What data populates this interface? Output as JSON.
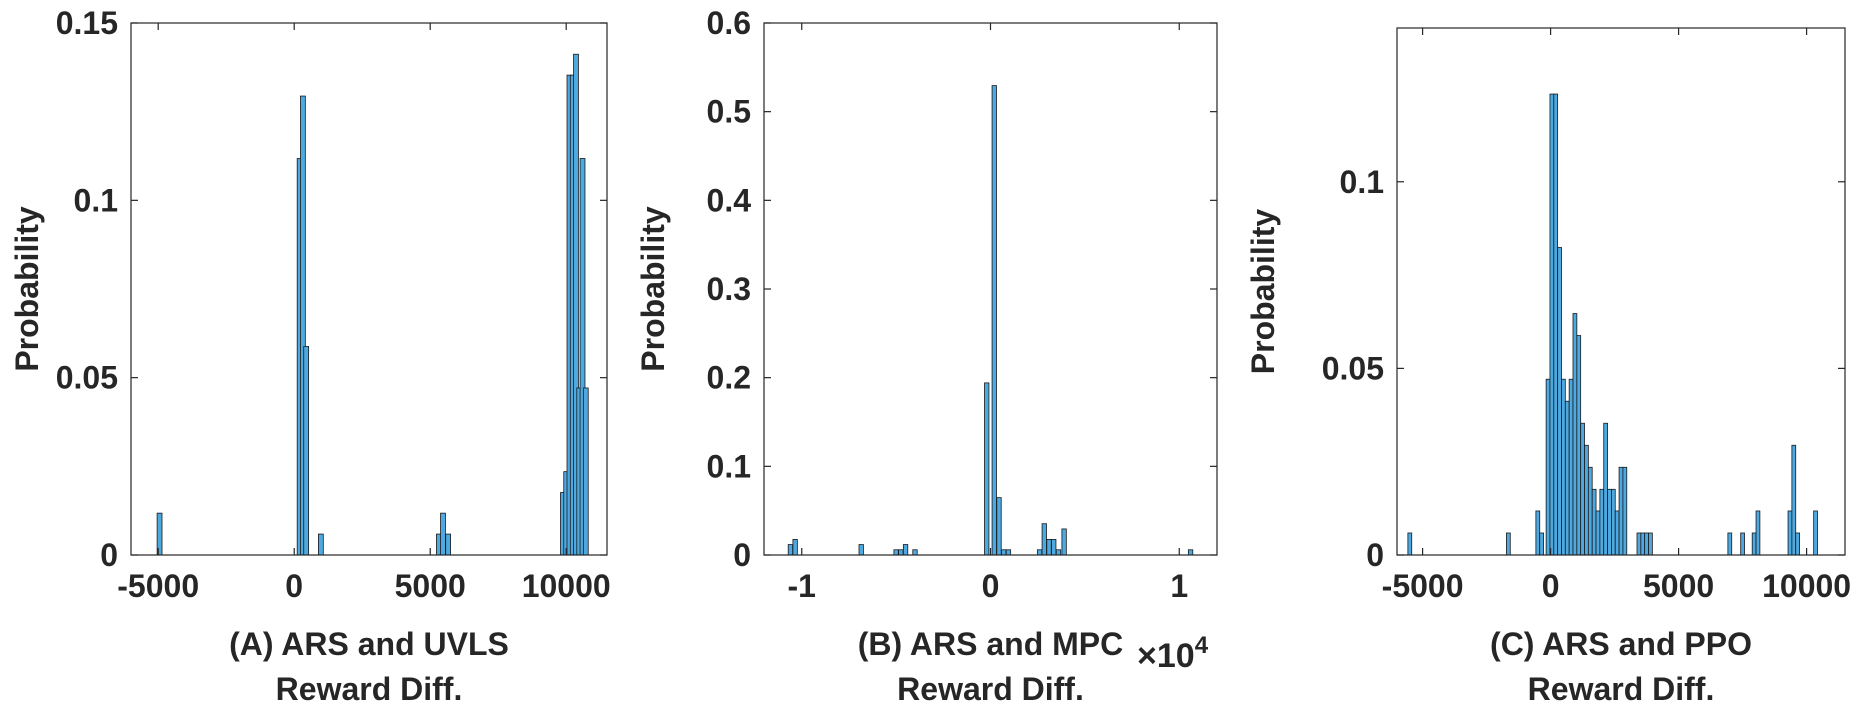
{
  "colors": {
    "bar_fill": "#4DA9E0",
    "bar_stroke": "#1a1a1a",
    "axis": "#262626"
  },
  "chart_data": [
    {
      "type": "bar",
      "subtype": "histogram",
      "ylabel": "Probability",
      "xlabel_lines": [
        "(A) ARS and UVLS",
        "Reward Diff."
      ],
      "xlim": [
        -6000,
        11500
      ],
      "ylim": [
        0,
        0.15
      ],
      "xticks": [
        -5000,
        0,
        5000,
        10000
      ],
      "xtick_labels": [
        "-5000",
        "0",
        "5000",
        "10000"
      ],
      "yticks": [
        0,
        0.05,
        0.1,
        0.15
      ],
      "ytick_labels": [
        "0",
        "0.05",
        "0.1",
        "0.15"
      ],
      "bin_width": 180,
      "bins": [
        {
          "x": -4950,
          "p": 0.0118
        },
        {
          "x": 200,
          "p": 0.1118
        },
        {
          "x": 320,
          "p": 0.1294
        },
        {
          "x": 440,
          "p": 0.0588
        },
        {
          "x": 980,
          "p": 0.0059
        },
        {
          "x": 5320,
          "p": 0.0059
        },
        {
          "x": 5470,
          "p": 0.0118
        },
        {
          "x": 5660,
          "p": 0.0059
        },
        {
          "x": 9880,
          "p": 0.0176
        },
        {
          "x": 10000,
          "p": 0.0235
        },
        {
          "x": 10120,
          "p": 0.1353
        },
        {
          "x": 10240,
          "p": 0.1353
        },
        {
          "x": 10360,
          "p": 0.1412
        },
        {
          "x": 10480,
          "p": 0.0471
        },
        {
          "x": 10600,
          "p": 0.1118
        },
        {
          "x": 10720,
          "p": 0.0471
        }
      ]
    },
    {
      "type": "bar",
      "subtype": "histogram",
      "ylabel": "Probability",
      "xlabel_lines": [
        "(B) ARS and MPC",
        "Reward Diff."
      ],
      "x_multiplier": "×10",
      "x_multiplier_exp": "4",
      "xlim": [
        -1.2,
        1.2
      ],
      "ylim": [
        0,
        0.6
      ],
      "xticks": [
        -1,
        0,
        1
      ],
      "xtick_labels": [
        "-1",
        "0",
        "1"
      ],
      "yticks": [
        0,
        0.1,
        0.2,
        0.3,
        0.4,
        0.5,
        0.6
      ],
      "ytick_labels": [
        "0",
        "0.1",
        "0.2",
        "0.3",
        "0.4",
        "0.5",
        "0.6"
      ],
      "bin_width": 0.0235,
      "bins": [
        {
          "x": -1.06,
          "p": 0.0118
        },
        {
          "x": -1.035,
          "p": 0.0176
        },
        {
          "x": -0.685,
          "p": 0.0118
        },
        {
          "x": -0.5,
          "p": 0.0059
        },
        {
          "x": -0.475,
          "p": 0.0059
        },
        {
          "x": -0.45,
          "p": 0.0118
        },
        {
          "x": -0.4,
          "p": 0.0059
        },
        {
          "x": -0.02,
          "p": 0.1941
        },
        {
          "x": 0.02,
          "p": 0.5294
        },
        {
          "x": 0.045,
          "p": 0.0647
        },
        {
          "x": 0.07,
          "p": 0.0059
        },
        {
          "x": 0.095,
          "p": 0.0059
        },
        {
          "x": 0.26,
          "p": 0.0059
        },
        {
          "x": 0.285,
          "p": 0.0353
        },
        {
          "x": 0.31,
          "p": 0.0176
        },
        {
          "x": 0.335,
          "p": 0.0176
        },
        {
          "x": 0.36,
          "p": 0.0059
        },
        {
          "x": 0.39,
          "p": 0.0294
        },
        {
          "x": 1.06,
          "p": 0.0059
        }
      ]
    },
    {
      "type": "bar",
      "subtype": "histogram",
      "ylabel": "Probability",
      "xlabel_lines": [
        "(C) ARS and PPO",
        "Reward Diff."
      ],
      "xlim": [
        -6000,
        11500
      ],
      "ylim": [
        0,
        0.1412
      ],
      "xticks": [
        -5000,
        0,
        5000,
        10000
      ],
      "xtick_labels": [
        "-5000",
        "0",
        "5000",
        "10000"
      ],
      "yticks": [
        0,
        0.05,
        0.1
      ],
      "ytick_labels": [
        "0",
        "0.05",
        "0.1"
      ],
      "bin_width": 150,
      "bins": [
        {
          "x": -5500,
          "p": 0.0059
        },
        {
          "x": -1650,
          "p": 0.0059
        },
        {
          "x": -500,
          "p": 0.0118
        },
        {
          "x": -350,
          "p": 0.0059
        },
        {
          "x": -100,
          "p": 0.0471
        },
        {
          "x": 50,
          "p": 0.1235
        },
        {
          "x": 200,
          "p": 0.1235
        },
        {
          "x": 350,
          "p": 0.0824
        },
        {
          "x": 500,
          "p": 0.0471
        },
        {
          "x": 650,
          "p": 0.0412
        },
        {
          "x": 800,
          "p": 0.0471
        },
        {
          "x": 950,
          "p": 0.0647
        },
        {
          "x": 1100,
          "p": 0.0588
        },
        {
          "x": 1250,
          "p": 0.0353
        },
        {
          "x": 1400,
          "p": 0.0294
        },
        {
          "x": 1550,
          "p": 0.0235
        },
        {
          "x": 1700,
          "p": 0.0176
        },
        {
          "x": 1850,
          "p": 0.0118
        },
        {
          "x": 2000,
          "p": 0.0176
        },
        {
          "x": 2150,
          "p": 0.0353
        },
        {
          "x": 2300,
          "p": 0.0176
        },
        {
          "x": 2450,
          "p": 0.0176
        },
        {
          "x": 2600,
          "p": 0.0118
        },
        {
          "x": 2750,
          "p": 0.0235
        },
        {
          "x": 2900,
          "p": 0.0235
        },
        {
          "x": 3450,
          "p": 0.0059
        },
        {
          "x": 3600,
          "p": 0.0059
        },
        {
          "x": 3750,
          "p": 0.0059
        },
        {
          "x": 3900,
          "p": 0.0059
        },
        {
          "x": 7000,
          "p": 0.0059
        },
        {
          "x": 7500,
          "p": 0.0059
        },
        {
          "x": 7950,
          "p": 0.0059
        },
        {
          "x": 8100,
          "p": 0.0118
        },
        {
          "x": 9350,
          "p": 0.0118
        },
        {
          "x": 9500,
          "p": 0.0294
        },
        {
          "x": 9650,
          "p": 0.0059
        },
        {
          "x": 10350,
          "p": 0.0118
        }
      ]
    }
  ]
}
